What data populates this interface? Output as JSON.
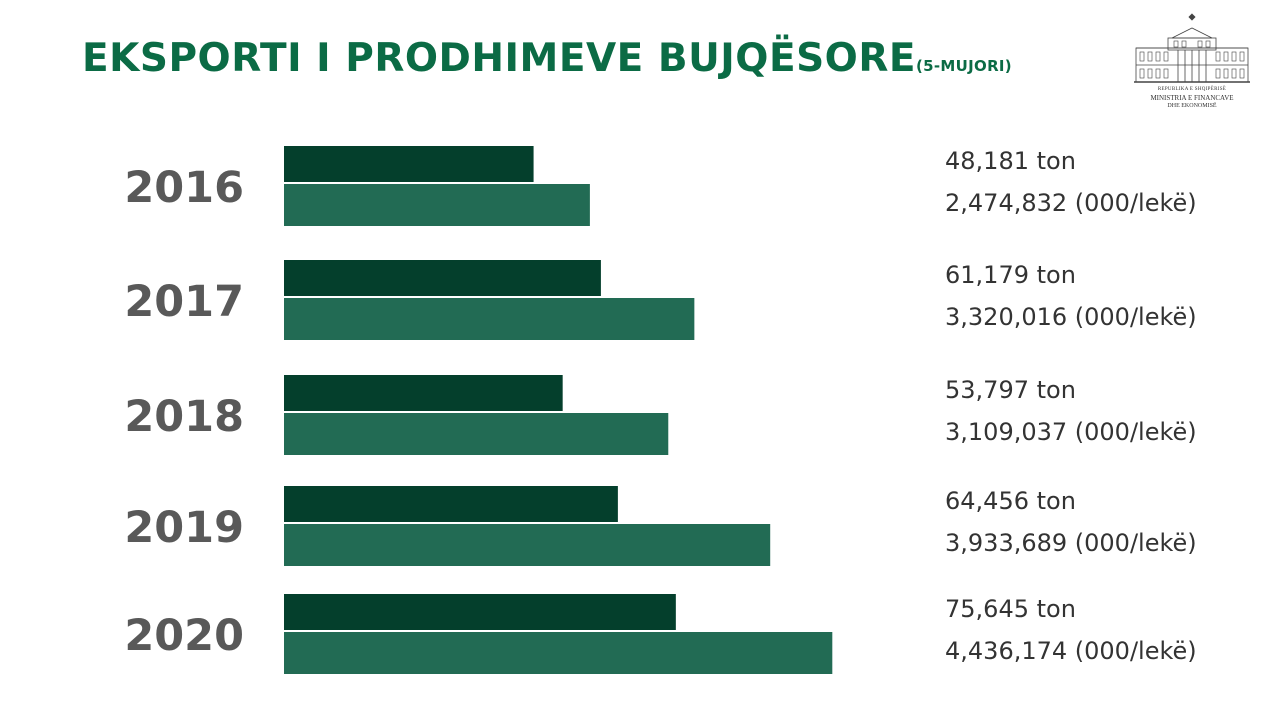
{
  "header": {
    "title": "EKSPORTI I PRODHIMEVE BUJQËSORE",
    "subtitle": "(5-MUJORI)"
  },
  "logo": {
    "icon": "ministry-building-icon",
    "line1": "REPUBLIKA E SHQIPËRISË",
    "line2": "MINISTRIA E FINANCAVE",
    "line3": "DHE EKONOMISË"
  },
  "colors": {
    "title": "#0b6b45",
    "tons_bar": "#043f2c",
    "value_bar": "#226b54",
    "year_text": "#595959",
    "value_text": "#333333"
  },
  "chart_data": {
    "type": "bar",
    "orientation": "horizontal",
    "categories": [
      "2016",
      "2017",
      "2018",
      "2019",
      "2020"
    ],
    "series": [
      {
        "values": [
          48181,
          61179,
          53797,
          64456,
          75645
        ]
      },
      {
        "values": [
          2474832,
          3320016,
          3109037,
          3933689,
          4436174
        ]
      }
    ],
    "labels": [
      [
        "48,181 ton",
        "2,474,832 (000/lekë)"
      ],
      [
        "61,179 ton",
        "3,320,016 (000/lekë)"
      ],
      [
        "53,797 ton",
        "3,109,037 (000/lekë)"
      ],
      [
        "64,456 ton",
        "3,933,689 (000/lekë)"
      ],
      [
        "75,645 ton",
        "4,436,174 (000/lekë)"
      ]
    ],
    "title": "EKSPORTI I PRODHIMEVE BUJQËSORE",
    "xlabel": "",
    "ylabel": "",
    "grid": false,
    "legend": "none"
  }
}
